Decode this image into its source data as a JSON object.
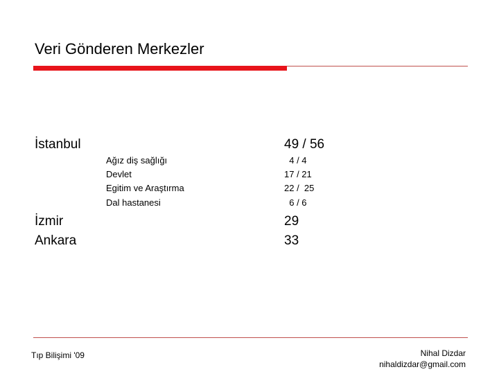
{
  "slide": {
    "title": "Veri Gönderen Merkezler",
    "istanbul": {
      "label": "İstanbul",
      "value": "49 / 56",
      "breakdown": [
        {
          "label": "Ağız diş sağlığı",
          "value": "  4 / 4"
        },
        {
          "label": "Devlet",
          "value": "17 / 21"
        },
        {
          "label": "Egitim ve Araştırma",
          "value": "22 /  25"
        },
        {
          "label": "Dal hastanesi",
          "value": "  6 / 6"
        }
      ]
    },
    "izmir": {
      "label": "İzmir",
      "value": "29"
    },
    "ankara": {
      "label": "Ankara",
      "value": "33"
    }
  },
  "footer": {
    "left": "Tıp Bilişimi '09",
    "author": "Nihal Dizdar",
    "email": "nihaldizdar@gmail.com"
  },
  "colors": {
    "accent": "#e8141b",
    "rule": "#c0504d"
  }
}
